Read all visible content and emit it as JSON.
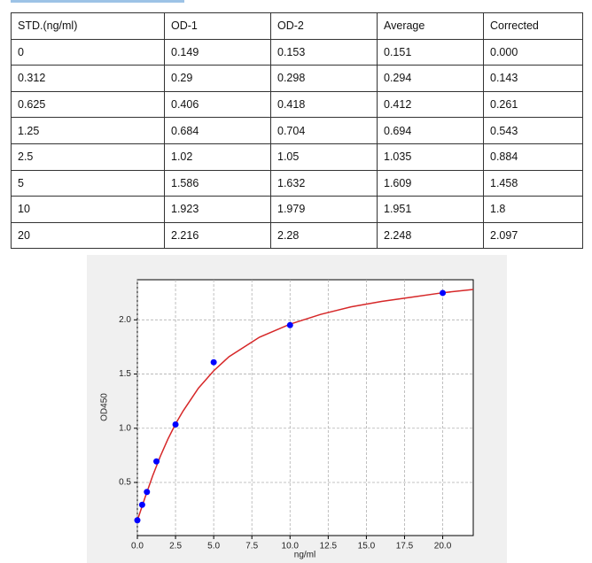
{
  "table": {
    "header": [
      "STD.(ng/ml)",
      "OD-1",
      "OD-2",
      "Average",
      "Corrected"
    ],
    "rows": [
      [
        "0",
        "0.149",
        "0.153",
        "0.151",
        "0.000"
      ],
      [
        "0.312",
        "0.29",
        "0.298",
        "0.294",
        "0.143"
      ],
      [
        "0.625",
        "0.406",
        "0.418",
        "0.412",
        "0.261"
      ],
      [
        "1.25",
        "0.684",
        "0.704",
        "0.694",
        "0.543"
      ],
      [
        "2.5",
        "1.02",
        "1.05",
        "1.035",
        "0.884"
      ],
      [
        "5",
        "1.586",
        "1.632",
        "1.609",
        "1.458"
      ],
      [
        "10",
        "1.923",
        "1.979",
        "1.951",
        "1.8"
      ],
      [
        "20",
        "2.216",
        "2.28",
        "2.248",
        "2.097"
      ]
    ]
  },
  "chart_data": {
    "type": "scatter",
    "xlabel": "ng/ml",
    "ylabel": "OD450",
    "xlim": [
      0,
      22
    ],
    "ylim": [
      0.01,
      2.37
    ],
    "xticks": [
      {
        "value": 0,
        "label": "0.0"
      },
      2.5,
      {
        "value": 5,
        "label": "5.0"
      },
      7.5,
      {
        "value": 10,
        "label": "10.0"
      },
      12.5,
      {
        "value": 15,
        "label": "15.0"
      },
      17.5,
      {
        "value": 20,
        "label": "20.0"
      }
    ],
    "yticks": [
      0.5,
      {
        "value": 1,
        "label": "1.0"
      },
      1.5,
      {
        "value": 2,
        "label": "2.0"
      }
    ],
    "grid": true,
    "series": [
      {
        "type": "line",
        "color": "#d62728",
        "x": [
          0,
          0.5,
          1,
          1.5,
          2,
          2.5,
          3,
          4,
          5,
          6,
          8,
          10,
          12,
          14,
          16,
          18,
          20,
          22
        ],
        "values": [
          0.15,
          0.36,
          0.56,
          0.74,
          0.9,
          1.04,
          1.16,
          1.37,
          1.53,
          1.66,
          1.84,
          1.96,
          2.05,
          2.12,
          2.17,
          2.21,
          2.25,
          2.28
        ]
      },
      {
        "type": "scatter",
        "color": "#0000ff",
        "x": [
          0,
          0.312,
          0.625,
          1.25,
          2.5,
          5,
          10,
          20
        ],
        "values": [
          0.151,
          0.294,
          0.412,
          0.694,
          1.035,
          1.609,
          1.951,
          2.248
        ]
      }
    ]
  }
}
